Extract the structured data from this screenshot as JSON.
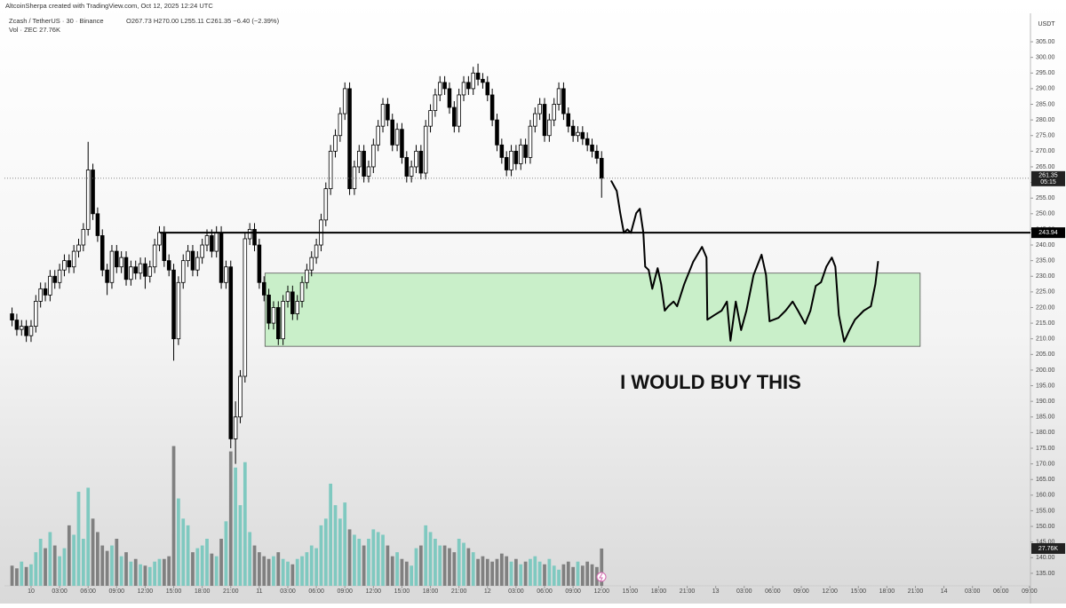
{
  "header": {
    "credit": "AltcoinSherpa created with TradingView.com, Oct 12, 2025 12:24 UTC",
    "symbol": "Zcash / TetherUS · 30 · Binance",
    "ohlc": "O267.73 H270.00 L255.11 C261.35 −6.40 (−2.39%)",
    "volume": "Vol · ZEC 27.76K"
  },
  "chart_data": {
    "type": "candlestick",
    "annotation": "I WOULD BUY THIS",
    "currency": "USDT",
    "xlim": [
      -2.8,
      105.1
    ],
    "ylim": [
      131,
      314.1
    ],
    "y2lim": [
      0,
      426
    ],
    "up_color": "#ffffff",
    "down_color": "#000000",
    "volume_up_color": "#7fc9c0",
    "volume_down_color": "#808080",
    "zone_color": "#c9efc9",
    "xticks": [
      {
        "value": 0,
        "label": "10"
      },
      {
        "value": 3,
        "label": "03:00"
      },
      {
        "value": 6,
        "label": "06:00"
      },
      {
        "value": 9,
        "label": "09:00"
      },
      {
        "value": 12,
        "label": "12:00"
      },
      {
        "value": 15,
        "label": "15:00"
      },
      {
        "value": 18,
        "label": "18:00"
      },
      {
        "value": 21,
        "label": "21:00"
      },
      {
        "value": 24,
        "label": "11"
      },
      {
        "value": 27,
        "label": "03:00"
      },
      {
        "value": 30,
        "label": "06:00"
      },
      {
        "value": 33,
        "label": "09:00"
      },
      {
        "value": 36,
        "label": "12:00"
      },
      {
        "value": 39,
        "label": "15:00"
      },
      {
        "value": 42,
        "label": "18:00"
      },
      {
        "value": 45,
        "label": "21:00"
      },
      {
        "value": 48,
        "label": "12"
      },
      {
        "value": 51,
        "label": "03:00"
      },
      {
        "value": 54,
        "label": "06:00"
      },
      {
        "value": 57,
        "label": "09:00"
      },
      {
        "value": 60,
        "label": "12:00"
      },
      {
        "value": 63,
        "label": "15:00"
      },
      {
        "value": 66,
        "label": "18:00"
      },
      {
        "value": 69,
        "label": "21:00"
      },
      {
        "value": 72,
        "label": "13"
      },
      {
        "value": 75,
        "label": "03:00"
      },
      {
        "value": 78,
        "label": "06:00"
      },
      {
        "value": 81,
        "label": "09:00"
      },
      {
        "value": 84,
        "label": "12:00"
      },
      {
        "value": 87,
        "label": "15:00"
      },
      {
        "value": 90,
        "label": "18:00"
      },
      {
        "value": 93,
        "label": "21:00"
      },
      {
        "value": 96,
        "label": "14"
      },
      {
        "value": 99,
        "label": "03:00"
      },
      {
        "value": 102,
        "label": "06:00"
      },
      {
        "value": 105,
        "label": "09:00"
      }
    ],
    "yticks": [
      {
        "value": 135,
        "label": "135.00"
      },
      {
        "value": 140,
        "label": "140.00"
      },
      {
        "value": 145,
        "label": "145.00"
      },
      {
        "value": 150,
        "label": "150.00"
      },
      {
        "value": 155,
        "label": "155.00"
      },
      {
        "value": 160,
        "label": "160.00"
      },
      {
        "value": 165,
        "label": "165.00"
      },
      {
        "value": 170,
        "label": "170.00"
      },
      {
        "value": 175,
        "label": "175.00"
      },
      {
        "value": 180,
        "label": "180.00"
      },
      {
        "value": 185,
        "label": "185.00"
      },
      {
        "value": 190,
        "label": "190.00"
      },
      {
        "value": 195,
        "label": "195.00"
      },
      {
        "value": 200,
        "label": "200.00"
      },
      {
        "value": 205,
        "label": "205.00"
      },
      {
        "value": 210,
        "label": "210.00"
      },
      {
        "value": 215,
        "label": "215.00"
      },
      {
        "value": 220,
        "label": "220.00"
      },
      {
        "value": 225,
        "label": "225.00"
      },
      {
        "value": 230,
        "label": "230.00"
      },
      {
        "value": 235,
        "label": "235.00"
      },
      {
        "value": 240,
        "label": "240.00"
      },
      {
        "value": 245,
        "label": "245.00"
      },
      {
        "value": 250,
        "label": "250.00"
      },
      {
        "value": 255,
        "label": "255.00"
      },
      {
        "value": 260,
        "label": "260.00"
      },
      {
        "value": 265,
        "label": "265.00"
      },
      {
        "value": 270,
        "label": "270.00"
      },
      {
        "value": 275,
        "label": "275.00"
      },
      {
        "value": 280,
        "label": "280.00"
      },
      {
        "value": 285,
        "label": "285.00"
      },
      {
        "value": 290,
        "label": "290.00"
      },
      {
        "value": 295,
        "label": "295.00"
      },
      {
        "value": 300,
        "label": "300.00"
      },
      {
        "value": 305,
        "label": "305.00"
      }
    ],
    "x": [
      -2,
      -1.5,
      -1,
      -0.5,
      0,
      0.5,
      1,
      1.5,
      2,
      2.5,
      3,
      3.5,
      4,
      4.5,
      5,
      5.5,
      6,
      6.5,
      7,
      7.5,
      8,
      8.5,
      9,
      9.5,
      10,
      10.5,
      11,
      11.5,
      12,
      12.5,
      13,
      13.5,
      14,
      14.5,
      15,
      15.5,
      16,
      16.5,
      17,
      17.5,
      18,
      18.5,
      19,
      19.5,
      20,
      20.5,
      21,
      21.5,
      22,
      22.5,
      23,
      23.5,
      24,
      24.5,
      25,
      25.5,
      26,
      26.5,
      27,
      27.5,
      28,
      28.5,
      29,
      29.5,
      30,
      30.5,
      31,
      31.5,
      32,
      32.5,
      33,
      33.5,
      34,
      34.5,
      35,
      35.5,
      36,
      36.5,
      37,
      37.5,
      38,
      38.5,
      39,
      39.5,
      40,
      40.5,
      41,
      41.5,
      42,
      42.5,
      43,
      43.5,
      44,
      44.5,
      45,
      45.5,
      46,
      46.5,
      47,
      47.5,
      48,
      48.5,
      49,
      49.5,
      50,
      50.5,
      51,
      51.5,
      52,
      52.5,
      53,
      53.5,
      54,
      54.5,
      55,
      55.5,
      56,
      56.5,
      57,
      57.5,
      58,
      58.5,
      59,
      59.5,
      60
    ],
    "open": [
      218,
      216,
      213,
      214,
      211,
      214,
      222,
      226,
      224,
      230,
      228,
      232,
      235,
      233,
      238,
      240,
      245,
      264,
      250,
      243,
      232,
      228,
      238,
      233,
      236,
      229,
      233,
      231,
      234,
      230,
      233,
      240,
      244,
      235,
      232,
      210,
      228,
      235,
      238,
      232,
      236,
      240,
      243,
      238,
      244,
      228,
      233,
      178,
      185,
      198,
      242,
      245,
      240,
      228,
      224,
      215,
      220,
      210,
      222,
      225,
      218,
      222,
      228,
      232,
      236,
      240,
      248,
      258,
      270,
      275,
      282,
      290,
      258,
      265,
      270,
      262,
      265,
      272,
      278,
      285,
      280,
      272,
      277,
      268,
      262,
      265,
      270,
      263,
      278,
      283,
      288,
      292,
      290,
      284,
      278,
      288,
      292,
      290,
      295,
      293,
      292,
      288,
      280,
      272,
      268,
      264,
      270,
      266,
      272,
      268,
      278,
      282,
      285,
      275,
      280,
      285,
      290,
      282,
      278,
      275,
      276,
      274,
      272,
      270,
      267.73
    ],
    "high": [
      220,
      218,
      216,
      216,
      216,
      224,
      228,
      228,
      232,
      232,
      234,
      237,
      237,
      240,
      242,
      247,
      273,
      266,
      252,
      245,
      234,
      240,
      240,
      238,
      238,
      235,
      235,
      236,
      236,
      235,
      242,
      246,
      246,
      237,
      234,
      230,
      237,
      240,
      240,
      238,
      242,
      245,
      245,
      246,
      246,
      235,
      235,
      190,
      200,
      244,
      247,
      247,
      242,
      230,
      226,
      222,
      222,
      224,
      227,
      227,
      224,
      230,
      234,
      238,
      242,
      250,
      260,
      272,
      277,
      284,
      292,
      292,
      267,
      272,
      272,
      267,
      274,
      280,
      287,
      287,
      282,
      279,
      279,
      270,
      267,
      272,
      272,
      280,
      285,
      290,
      294,
      294,
      292,
      286,
      290,
      294,
      294,
      297,
      298,
      295,
      294,
      290,
      282,
      274,
      270,
      272,
      272,
      274,
      274,
      280,
      284,
      287,
      287,
      282,
      287,
      292,
      292,
      284,
      280,
      278,
      278,
      276,
      274,
      272,
      270
    ],
    "low": [
      214,
      211,
      211,
      209,
      209,
      212,
      220,
      222,
      222,
      226,
      226,
      230,
      231,
      231,
      236,
      238,
      243,
      248,
      241,
      230,
      224,
      226,
      231,
      231,
      227,
      227,
      229,
      229,
      226,
      228,
      231,
      238,
      233,
      230,
      203,
      208,
      226,
      233,
      230,
      230,
      234,
      238,
      236,
      236,
      226,
      226,
      175,
      170,
      183,
      196,
      240,
      238,
      226,
      222,
      213,
      213,
      208,
      208,
      220,
      216,
      216,
      220,
      226,
      230,
      234,
      238,
      246,
      256,
      268,
      273,
      280,
      256,
      256,
      263,
      260,
      260,
      263,
      270,
      276,
      278,
      270,
      270,
      266,
      260,
      260,
      263,
      261,
      261,
      276,
      281,
      286,
      288,
      282,
      276,
      276,
      286,
      288,
      288,
      291,
      290,
      286,
      278,
      270,
      266,
      262,
      262,
      264,
      264,
      266,
      266,
      276,
      280,
      273,
      273,
      278,
      283,
      280,
      276,
      273,
      273,
      272,
      270,
      268,
      266,
      255.11
    ],
    "close": [
      216,
      213,
      214,
      211,
      214,
      222,
      226,
      224,
      230,
      228,
      232,
      235,
      233,
      238,
      240,
      245,
      264,
      250,
      243,
      232,
      228,
      238,
      233,
      236,
      229,
      233,
      231,
      234,
      230,
      233,
      240,
      244,
      235,
      232,
      210,
      228,
      235,
      238,
      232,
      236,
      240,
      243,
      238,
      244,
      228,
      233,
      178,
      185,
      198,
      242,
      245,
      240,
      228,
      224,
      215,
      220,
      210,
      222,
      225,
      218,
      222,
      228,
      232,
      236,
      240,
      248,
      258,
      270,
      275,
      282,
      290,
      258,
      265,
      270,
      262,
      265,
      272,
      278,
      285,
      280,
      272,
      277,
      268,
      262,
      265,
      270,
      263,
      278,
      283,
      288,
      292,
      290,
      284,
      278,
      288,
      292,
      290,
      295,
      293,
      292,
      288,
      280,
      272,
      268,
      264,
      270,
      266,
      272,
      268,
      278,
      282,
      285,
      275,
      280,
      285,
      290,
      282,
      278,
      275,
      276,
      274,
      272,
      270,
      267.73,
      261.35
    ],
    "volume": [
      15,
      13,
      18,
      14,
      16,
      25,
      35,
      28,
      40,
      30,
      22,
      28,
      45,
      38,
      70,
      35,
      73,
      50,
      40,
      30,
      26,
      30,
      35,
      22,
      25,
      18,
      20,
      16,
      15,
      14,
      18,
      20,
      20,
      22,
      104,
      65,
      50,
      45,
      25,
      28,
      30,
      35,
      24,
      22,
      35,
      48,
      100,
      88,
      60,
      92,
      40,
      30,
      25,
      22,
      20,
      22,
      25,
      20,
      18,
      16,
      20,
      22,
      25,
      30,
      28,
      45,
      50,
      76,
      60,
      50,
      62,
      42,
      38,
      35,
      30,
      35,
      42,
      40,
      38,
      30,
      22,
      25,
      20,
      18,
      15,
      28,
      30,
      45,
      40,
      35,
      30,
      30,
      28,
      25,
      35,
      32,
      28,
      25,
      20,
      22,
      20,
      18,
      20,
      24,
      22,
      18,
      20,
      16,
      18,
      20,
      22,
      18,
      16,
      20,
      15,
      12,
      16,
      18,
      14,
      18,
      15,
      18,
      16,
      14,
      27.76
    ],
    "volume_label": "27.76K",
    "price_line": {
      "value": 261.35,
      "label": "261.35",
      "countdown": "05:15"
    },
    "level": {
      "value": 243.94,
      "label": "243.94",
      "start": 13.55
    },
    "zone": {
      "x": [
        24.6,
        93.5
      ],
      "y": [
        207.6,
        231
      ]
    },
    "drawing": {
      "x": [
        61.03,
        61.59,
        61.96,
        62.34,
        62.71,
        63.08,
        63.64,
        64.02,
        64.39,
        64.58,
        64.95,
        65.33,
        65.89,
        66.26,
        66.64,
        67.01,
        67.57,
        67.94,
        68.69,
        69.63,
        70.56,
        71.03,
        71.12,
        71.87,
        72.62,
        73.18,
        73.55,
        74.11,
        74.67,
        75.23,
        75.98,
        76.82,
        77.29,
        77.66,
        78.6,
        79.35,
        80.09,
        80.65,
        81.4,
        81.96,
        82.52,
        83.08,
        83.64,
        84.21,
        84.58,
        84.95,
        85.51,
        86.07,
        86.64,
        87.57,
        88.32,
        88.79,
        89.07
      ],
      "y": [
        260.4,
        257.3,
        250.2,
        243.9,
        245.0,
        243.9,
        250.2,
        251.6,
        243.9,
        233.1,
        232.0,
        226.0,
        232.6,
        227.5,
        219.0,
        220.4,
        221.9,
        220.4,
        227.5,
        234.6,
        239.4,
        236.0,
        216.1,
        217.6,
        219.0,
        221.9,
        209.4,
        221.9,
        212.8,
        219.0,
        230.4,
        236.9,
        230.4,
        215.6,
        216.7,
        219.0,
        221.9,
        219.0,
        214.8,
        219.0,
        226.9,
        228.1,
        233.1,
        236.0,
        233.1,
        217.6,
        209.1,
        212.8,
        216.1,
        219.0,
        220.4,
        227.5,
        234.6
      ]
    }
  }
}
